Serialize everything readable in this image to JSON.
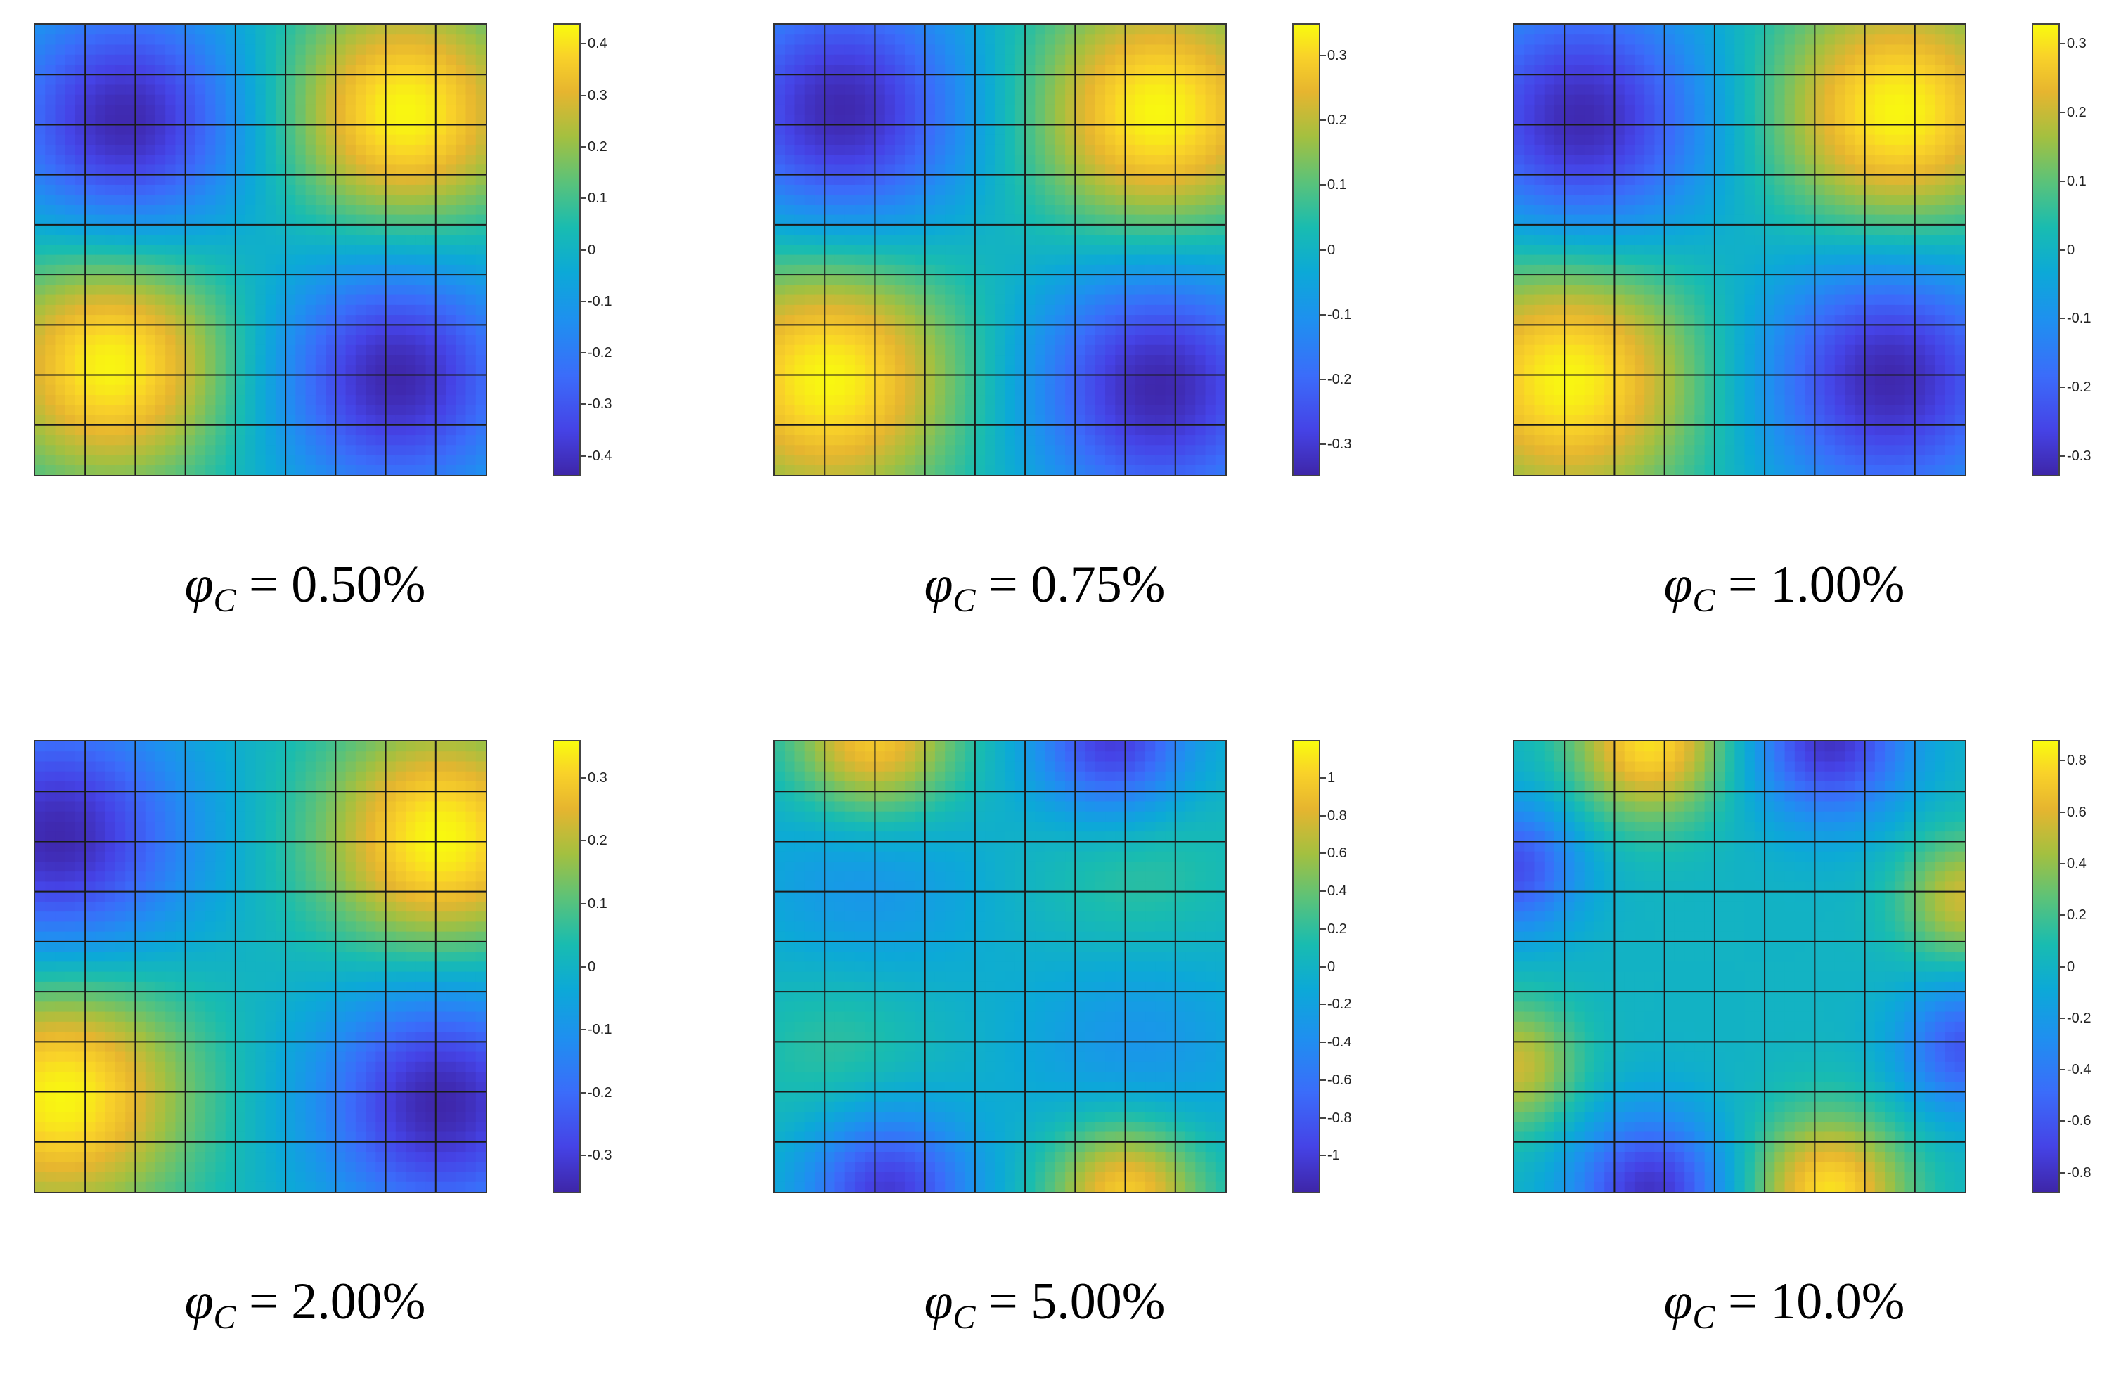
{
  "chart_data": [
    {
      "type": "heatmap",
      "caption": {
        "symbol": "φ",
        "subscript": "C",
        "op": "=",
        "value": "0.50%"
      },
      "grid": "9x9",
      "clim": [
        -0.44,
        0.44
      ],
      "colorbar_ticks": [
        "0.4",
        "0.3",
        "0.2",
        "0.1",
        "0",
        "-0.1",
        "-0.2",
        "-0.3",
        "-0.4"
      ],
      "colorbar_values": [
        0.4,
        0.3,
        0.2,
        0.1,
        0,
        -0.1,
        -0.2,
        -0.3,
        -0.4
      ],
      "features": [
        {
          "cx": 0.2,
          "cy": 0.22,
          "r": 0.19,
          "v": -0.44
        },
        {
          "cx": 0.82,
          "cy": 0.2,
          "r": 0.19,
          "v": 0.44
        },
        {
          "cx": 0.17,
          "cy": 0.75,
          "r": 0.19,
          "v": 0.44
        },
        {
          "cx": 0.8,
          "cy": 0.78,
          "r": 0.19,
          "v": -0.44
        }
      ]
    },
    {
      "type": "heatmap",
      "caption": {
        "symbol": "φ",
        "subscript": "C",
        "op": "=",
        "value": "0.75%"
      },
      "grid": "9x9",
      "clim": [
        -0.35,
        0.35
      ],
      "colorbar_ticks": [
        "0.3",
        "0.2",
        "0.1",
        "0",
        "-0.1",
        "-0.2",
        "-0.3"
      ],
      "colorbar_values": [
        0.3,
        0.2,
        0.1,
        0,
        -0.1,
        -0.2,
        -0.3
      ],
      "features": [
        {
          "cx": 0.15,
          "cy": 0.2,
          "r": 0.2,
          "v": -0.35
        },
        {
          "cx": 0.85,
          "cy": 0.2,
          "r": 0.2,
          "v": 0.35
        },
        {
          "cx": 0.12,
          "cy": 0.78,
          "r": 0.21,
          "v": 0.35
        },
        {
          "cx": 0.85,
          "cy": 0.8,
          "r": 0.2,
          "v": -0.35
        }
      ]
    },
    {
      "type": "heatmap",
      "caption": {
        "symbol": "φ",
        "subscript": "C",
        "op": "=",
        "value": "1.00%"
      },
      "grid": "9x9",
      "clim": [
        -0.33,
        0.33
      ],
      "colorbar_ticks": [
        "0.3",
        "0.2",
        "0.1",
        "0",
        "-0.1",
        "-0.2",
        "-0.3"
      ],
      "colorbar_values": [
        0.3,
        0.2,
        0.1,
        0,
        -0.1,
        -0.2,
        -0.3
      ],
      "features": [
        {
          "cx": 0.15,
          "cy": 0.22,
          "r": 0.2,
          "v": -0.33
        },
        {
          "cx": 0.85,
          "cy": 0.2,
          "r": 0.2,
          "v": 0.33
        },
        {
          "cx": 0.12,
          "cy": 0.78,
          "r": 0.21,
          "v": 0.33
        },
        {
          "cx": 0.83,
          "cy": 0.78,
          "r": 0.2,
          "v": -0.33
        }
      ]
    },
    {
      "type": "heatmap",
      "caption": {
        "symbol": "φ",
        "subscript": "C",
        "op": "=",
        "value": "2.00%"
      },
      "grid": "9x9",
      "clim": [
        -0.36,
        0.36
      ],
      "colorbar_ticks": [
        "0.3",
        "0.2",
        "0.1",
        "0",
        "-0.1",
        "-0.2",
        "-0.3"
      ],
      "colorbar_values": [
        0.3,
        0.2,
        0.1,
        0,
        -0.1,
        -0.2,
        -0.3
      ],
      "features": [
        {
          "cx": 0.05,
          "cy": 0.22,
          "r": 0.2,
          "v": -0.36
        },
        {
          "cx": 0.9,
          "cy": 0.22,
          "r": 0.19,
          "v": 0.36
        },
        {
          "cx": 0.06,
          "cy": 0.78,
          "r": 0.2,
          "v": 0.36
        },
        {
          "cx": 0.9,
          "cy": 0.8,
          "r": 0.19,
          "v": -0.36
        }
      ]
    },
    {
      "type": "heatmap",
      "caption": {
        "symbol": "φ",
        "subscript": "C",
        "op": "=",
        "value": "5.00%"
      },
      "grid": "9x9",
      "clim": [
        -1.2,
        1.2
      ],
      "colorbar_ticks": [
        "1",
        "0.8",
        "0.6",
        "0.4",
        "0.2",
        "0",
        "-0.2",
        "-0.4",
        "-0.6",
        "-0.8",
        "-1"
      ],
      "colorbar_values": [
        1,
        0.8,
        0.6,
        0.4,
        0.2,
        0,
        -0.2,
        -0.4,
        -0.6,
        -0.8,
        -1
      ],
      "features": [
        {
          "cx": 0.22,
          "cy": 0.0,
          "r": 0.13,
          "v": 1.05
        },
        {
          "cx": 0.75,
          "cy": 0.0,
          "r": 0.12,
          "v": -1.05
        },
        {
          "cx": 0.25,
          "cy": 1.0,
          "r": 0.13,
          "v": -1.05
        },
        {
          "cx": 0.78,
          "cy": 1.0,
          "r": 0.12,
          "v": 1.05
        },
        {
          "cx": 0.8,
          "cy": 0.3,
          "r": 0.16,
          "v": 0.25
        },
        {
          "cx": 0.15,
          "cy": 0.68,
          "r": 0.15,
          "v": 0.25
        },
        {
          "cx": 0.2,
          "cy": 0.3,
          "r": 0.18,
          "v": -0.35
        },
        {
          "cx": 0.8,
          "cy": 0.68,
          "r": 0.18,
          "v": -0.35
        }
      ]
    },
    {
      "type": "heatmap",
      "caption": {
        "symbol": "φ",
        "subscript": "C",
        "op": "=",
        "value": "10.0%"
      },
      "grid": "9x9",
      "clim": [
        -0.88,
        0.88
      ],
      "colorbar_ticks": [
        "0.8",
        "0.6",
        "0.4",
        "0.2",
        "0",
        "-0.2",
        "-0.4",
        "-0.6",
        "-0.8"
      ],
      "colorbar_values": [
        0.8,
        0.6,
        0.4,
        0.2,
        0,
        -0.2,
        -0.4,
        -0.6,
        -0.8
      ],
      "features": [
        {
          "cx": 0.3,
          "cy": 0.0,
          "r": 0.12,
          "v": 0.8
        },
        {
          "cx": 0.7,
          "cy": 0.0,
          "r": 0.12,
          "v": -0.8
        },
        {
          "cx": 0.3,
          "cy": 1.0,
          "r": 0.12,
          "v": -0.8
        },
        {
          "cx": 0.7,
          "cy": 1.0,
          "r": 0.12,
          "v": 0.8
        },
        {
          "cx": 0.0,
          "cy": 0.28,
          "r": 0.1,
          "v": -0.65
        },
        {
          "cx": 1.0,
          "cy": 0.35,
          "r": 0.1,
          "v": 0.55
        },
        {
          "cx": 0.0,
          "cy": 0.72,
          "r": 0.1,
          "v": 0.55
        },
        {
          "cx": 1.0,
          "cy": 0.68,
          "r": 0.1,
          "v": -0.6
        }
      ]
    }
  ]
}
